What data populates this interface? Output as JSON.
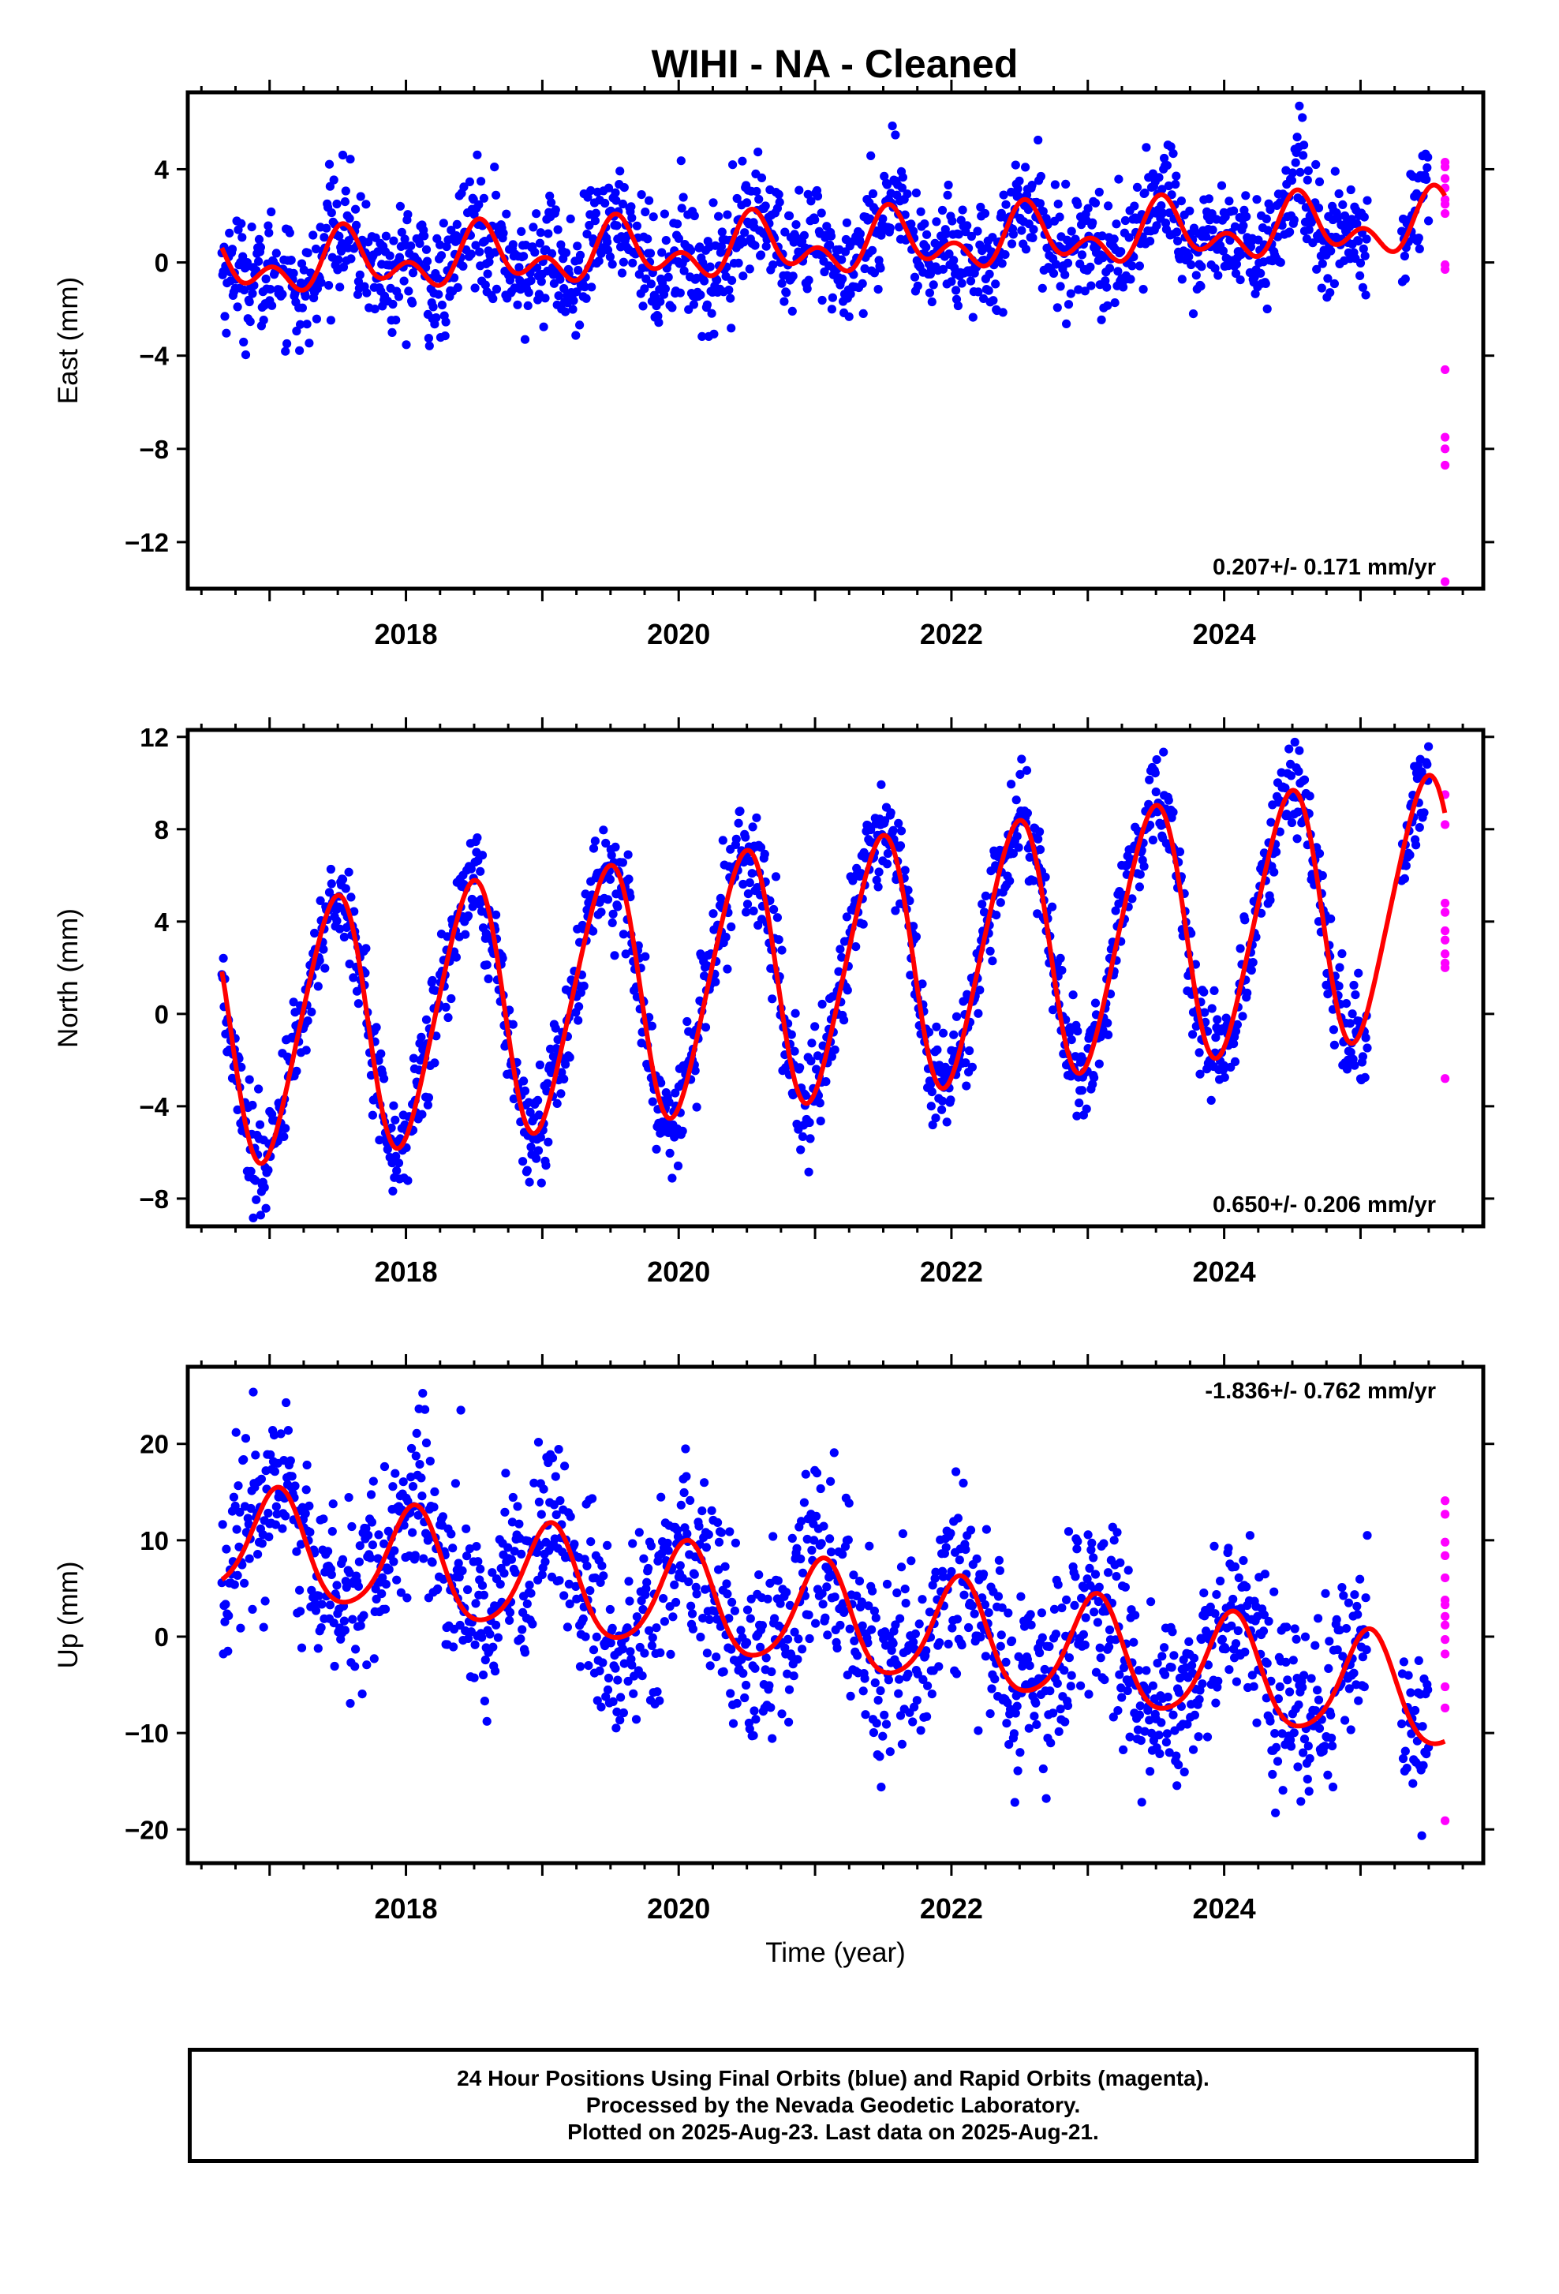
{
  "title": "WIHI  - NA - Cleaned",
  "colors": {
    "final": "#0000ff",
    "rapid": "#ff00ff",
    "model": "#ff0000",
    "frame": "#000000"
  },
  "chart_data": [
    {
      "type": "scatter",
      "ylabel": "East (mm)",
      "xlabel": "",
      "rate_label": "0.207+/- 0.171 mm/yr",
      "xlim": [
        2016.4,
        2025.9
      ],
      "ylim": [
        -14,
        7.3
      ],
      "yticks": [
        4,
        0,
        -4,
        -8,
        -12
      ],
      "ytick_labels": [
        "4",
        "0",
        "−4",
        "−8",
        "−12"
      ],
      "xticks": [
        2018,
        2020,
        2022,
        2024
      ],
      "xtick_labels": [
        "2018",
        "2020",
        "2022",
        "2024"
      ],
      "model": {
        "x0": 2016.65,
        "x1": 2025.62,
        "offset": -0.2,
        "trend": 0.207,
        "ann_amp": 0.9,
        "ann_phase": 4.3,
        "semi_amp": 0.8,
        "semi_phase": 1.2
      },
      "scatter_sd": 1.2,
      "rapid_values": [
        4.3,
        4.1,
        3.6,
        3.2,
        2.7,
        2.5,
        2.1,
        -0.1,
        -0.3,
        -4.6,
        -7.5,
        -8.0,
        -8.7,
        -13.7
      ],
      "series": [
        {
          "name": "Final Orbits",
          "color": "#0000ff"
        },
        {
          "name": "Rapid Orbits",
          "color": "#ff00ff"
        }
      ]
    },
    {
      "type": "scatter",
      "ylabel": "North (mm)",
      "xlabel": "",
      "rate_label": "0.650+/- 0.206 mm/yr",
      "xlim": [
        2016.4,
        2025.9
      ],
      "ylim": [
        -9.2,
        12.3
      ],
      "yticks": [
        12,
        8,
        4,
        0,
        -4,
        -8
      ],
      "ytick_labels": [
        "12",
        "8",
        "4",
        "0",
        "−4",
        "−8"
      ],
      "xticks": [
        2018,
        2020,
        2022,
        2024
      ],
      "xtick_labels": [
        "2018",
        "2020",
        "2022",
        "2024"
      ],
      "model": {
        "x0": 2016.65,
        "x1": 2025.62,
        "offset": -1.0,
        "trend": 0.65,
        "ann_amp": 5.5,
        "ann_phase": 4.9,
        "semi_amp": 0.6,
        "semi_phase": 0.3
      },
      "scatter_sd": 1.1,
      "rapid_values": [
        9.5,
        8.2,
        4.8,
        4.4,
        3.6,
        3.2,
        2.6,
        2.2,
        2.0,
        -2.8
      ],
      "series": [
        {
          "name": "Final Orbits",
          "color": "#0000ff"
        },
        {
          "name": "Rapid Orbits",
          "color": "#ff00ff"
        }
      ]
    },
    {
      "type": "scatter",
      "ylabel": "Up (mm)",
      "xlabel": "Time (year)",
      "rate_label": "-1.836+/- 0.762 mm/yr",
      "xlim": [
        2016.4,
        2025.9
      ],
      "ylim": [
        -23.5,
        28
      ],
      "yticks": [
        20,
        10,
        0,
        -10,
        -20
      ],
      "ytick_labels": [
        "20",
        "10",
        "0",
        "−10",
        "−20"
      ],
      "xticks": [
        2018,
        2020,
        2022,
        2024
      ],
      "xtick_labels": [
        "2018",
        "2020",
        "2022",
        "2024"
      ],
      "model": {
        "x0": 2016.65,
        "x1": 2025.62,
        "offset": 10.0,
        "trend": -1.836,
        "ann_amp": 5.5,
        "ann_phase": 1.2,
        "semi_amp": 0.8,
        "semi_phase": 0.5
      },
      "scatter_sd": 4.5,
      "rapid_values": [
        14.1,
        12.7,
        9.8,
        8.4,
        6.1,
        3.8,
        3.3,
        2.1,
        1.2,
        -0.3,
        -1.8,
        -5.2,
        -7.4,
        -19.1
      ],
      "series": [
        {
          "name": "Final Orbits",
          "color": "#0000ff"
        },
        {
          "name": "Rapid Orbits",
          "color": "#ff00ff"
        }
      ]
    }
  ],
  "caption": {
    "line1": "24 Hour Positions Using Final Orbits (blue) and Rapid Orbits (magenta).",
    "line2": "Processed by the Nevada Geodetic Laboratory.",
    "line3": "Plotted on 2025-Aug-23. Last data on 2025-Aug-21."
  }
}
